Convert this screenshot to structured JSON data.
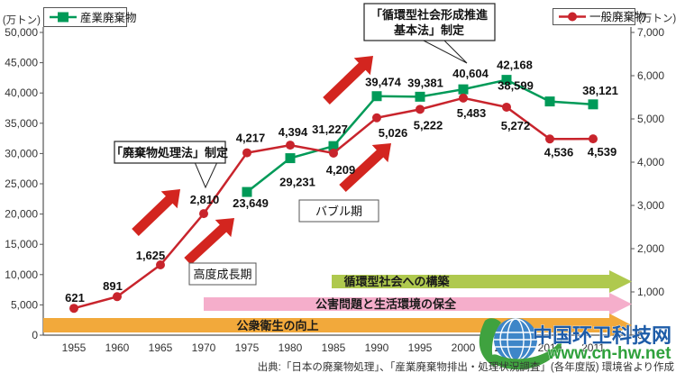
{
  "chart_data": {
    "type": "line",
    "title": "",
    "categories": [
      "1955",
      "1960",
      "1965",
      "1970",
      "1975",
      "1980",
      "1985",
      "1990",
      "1995",
      "2000",
      "2005",
      "2010",
      "2011"
    ],
    "left_axis": {
      "label": "(万トン)",
      "min": 0,
      "max": 50000,
      "step": 5000
    },
    "right_axis": {
      "label": "(万トン)",
      "min": 0,
      "max": 7000,
      "step": 1000
    },
    "grid": false,
    "series": [
      {
        "name": "産業廃棄物",
        "axis": "left",
        "marker": "square",
        "color": "#009A58",
        "values": [
          null,
          null,
          null,
          null,
          23649,
          29231,
          31227,
          39474,
          39381,
          40604,
          42168,
          38599,
          38121
        ]
      },
      {
        "name": "一般廃棄物",
        "axis": "right",
        "marker": "circle",
        "color": "#C8242C",
        "values": [
          621,
          891,
          1625,
          2810,
          4217,
          4394,
          4209,
          5026,
          5222,
          5483,
          5272,
          4536,
          4539
        ]
      }
    ],
    "annotations": {
      "law1": "「廃棄物処理法」制定",
      "law2_line1": "「循環型社会形成推進",
      "law2_line2": "基本法」制定",
      "period_growth": "高度成長期",
      "period_bubble": "バブル期"
    },
    "bands": [
      {
        "label": "循環型社会への構築",
        "color": "#AFC94E",
        "text_color": "#46491c"
      },
      {
        "label": "公害問題と生活環境の保全",
        "color": "#F5AECB",
        "text_color": "#4a3a42"
      },
      {
        "label": "公衆衛生の向上",
        "color": "#F2A93B",
        "text_color": "#513a10"
      }
    ],
    "legend": {
      "industrial": "産業廃棄物",
      "municipal": "一般廃棄物"
    },
    "arrow_color": "#D3251F",
    "legend_position": "top"
  },
  "watermark": {
    "name": "中国环卫科技网",
    "url": "www.cn-hw.net"
  },
  "source_note": "出典:「日本の廃棄物処理」、「産業廃棄物排出・処理状況調査」(各年度版) 環境省より作成"
}
